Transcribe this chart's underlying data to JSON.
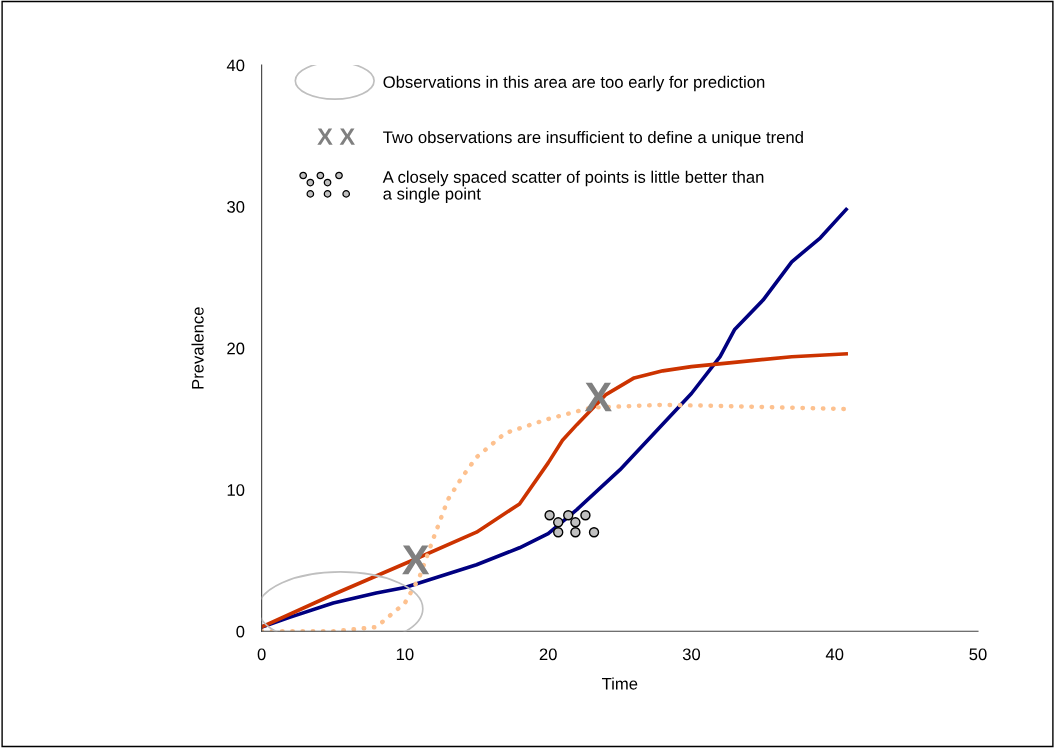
{
  "chart_data": {
    "type": "line",
    "xlabel": "Time",
    "ylabel": "Prevalence",
    "xlim": [
      0,
      50
    ],
    "ylim": [
      0,
      40
    ],
    "xticks": [
      0,
      10,
      20,
      30,
      40,
      50
    ],
    "yticks": [
      0,
      10,
      20,
      30,
      40
    ],
    "grid": false,
    "legend": false,
    "marker": "none",
    "series": [
      {
        "color": "#000080",
        "line_style": "solid",
        "x": [
          0,
          2,
          5,
          8,
          10,
          15,
          18,
          20,
          22,
          25,
          30,
          32,
          33,
          35,
          37,
          39,
          40.8
        ],
        "values": [
          0.3,
          1.0,
          2.0,
          2.7,
          3.1,
          4.7,
          5.9,
          6.9,
          8.6,
          11.4,
          16.8,
          19.4,
          21.3,
          23.4,
          26.1,
          27.8,
          29.8
        ]
      },
      {
        "color": "#cc3300",
        "line_style": "solid",
        "x": [
          0,
          5,
          10.5,
          15,
          18,
          20,
          21,
          22,
          24,
          26,
          28,
          30,
          33,
          37,
          40.8
        ],
        "values": [
          0.3,
          2.6,
          5.0,
          7.0,
          9.0,
          11.9,
          13.5,
          14.6,
          16.7,
          17.9,
          18.4,
          18.7,
          19.0,
          19.4,
          19.6
        ]
      },
      {
        "color": "#fdc18f",
        "line_style": "dotted",
        "x": [
          0,
          5,
          8,
          10,
          11,
          12,
          13,
          14,
          15,
          17,
          20,
          23,
          28,
          33,
          40.8
        ],
        "values": [
          0,
          0,
          0.3,
          2.0,
          3.8,
          6.6,
          9.3,
          10.9,
          12.3,
          14.0,
          15.0,
          15.8,
          16.0,
          15.9,
          15.7
        ]
      },
      {
        "type": "scatter",
        "marker": "circle",
        "color": "#c0c0c0",
        "x": [
          20.1,
          20.7,
          21.4,
          21.9,
          22.6,
          20.7,
          21.9,
          23.2
        ],
        "values": [
          8.2,
          7.7,
          8.2,
          7.7,
          8.2,
          7.0,
          7.0,
          7.0
        ]
      }
    ],
    "annotations": [
      "Observations in this area are too early for prediction",
      "X X",
      "Two observations are insufficient to define a unique trend",
      "A closely spaced scatter of points is little better than\na single point",
      {
        "text": "X",
        "x": 10.75,
        "y": 4.8
      },
      {
        "text": "X",
        "x": 23.5,
        "y": 16.3
      }
    ]
  }
}
